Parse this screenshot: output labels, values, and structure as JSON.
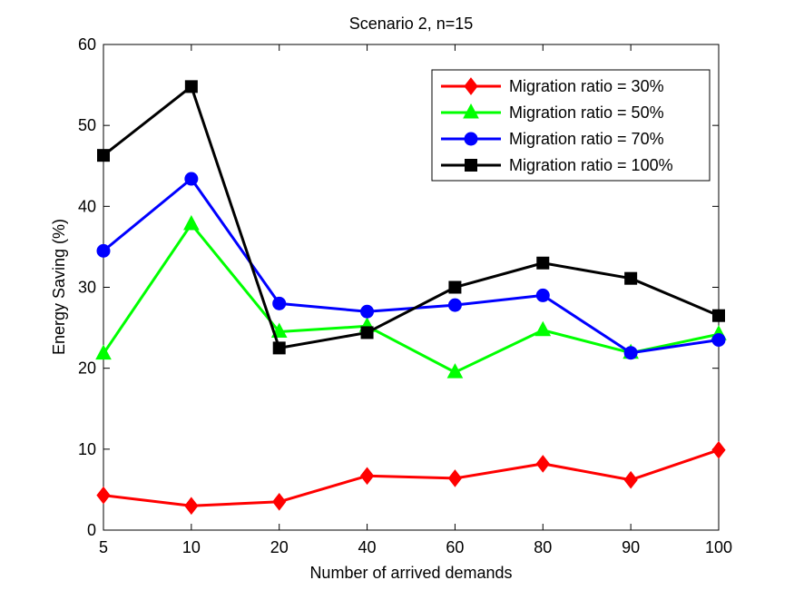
{
  "chart_data": {
    "type": "line",
    "title": "Scenario 2, n=15",
    "xlabel": "Number of arrived demands",
    "ylabel": "Energy Saving (%)",
    "categories": [
      "5",
      "10",
      "20",
      "40",
      "60",
      "80",
      "90",
      "100"
    ],
    "ylim": [
      0,
      60
    ],
    "yticks": [
      "0",
      "10",
      "20",
      "30",
      "40",
      "50",
      "60"
    ],
    "grid": false,
    "legend_position": "top-right",
    "series": [
      {
        "name": "Migration ratio = 30%",
        "color": "#ff0000",
        "marker": "diamond",
        "values": [
          4.3,
          3.0,
          3.5,
          6.7,
          6.4,
          8.2,
          6.2,
          9.9
        ]
      },
      {
        "name": "Migration ratio = 50%",
        "color": "#00ff00",
        "marker": "triangle",
        "values": [
          21.8,
          37.8,
          24.5,
          25.2,
          19.5,
          24.7,
          21.9,
          24.2
        ]
      },
      {
        "name": "Migration ratio = 70%",
        "color": "#0000ff",
        "marker": "circle",
        "values": [
          34.5,
          43.4,
          28.0,
          27.0,
          27.8,
          29.0,
          21.9,
          23.5
        ]
      },
      {
        "name": "Migration ratio = 100%",
        "color": "#000000",
        "marker": "square",
        "values": [
          46.3,
          54.8,
          22.5,
          24.4,
          30.0,
          33.0,
          31.1,
          26.5
        ]
      }
    ]
  }
}
